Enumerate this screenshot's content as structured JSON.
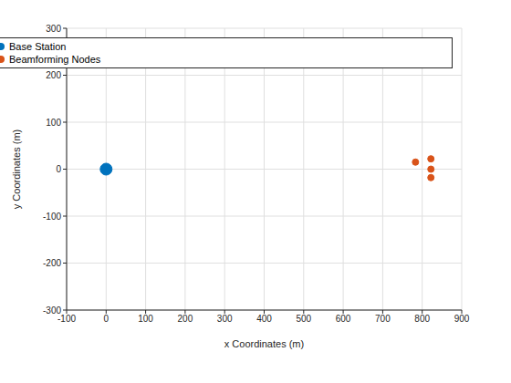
{
  "chart_data": {
    "type": "scatter",
    "xlabel": "x Coordinates (m)",
    "ylabel": "y Coordinates (m)",
    "xlim": [
      -100,
      900
    ],
    "xticks": [
      -100,
      0,
      100,
      200,
      300,
      400,
      500,
      600,
      700,
      800,
      900
    ],
    "ylim": [
      -300,
      300
    ],
    "yticks": [
      -300,
      -200,
      -100,
      0,
      100,
      200,
      300
    ],
    "grid": true,
    "legend": "northeast",
    "series": [
      {
        "name": "Base Station",
        "color": "#0072bd",
        "marker": "circle",
        "x": [
          0
        ],
        "values": [
          0
        ]
      },
      {
        "name": "Beamforming Nodes",
        "color": "#d95319",
        "marker": "circle",
        "x": [
          783,
          822,
          822,
          822
        ],
        "values": [
          15,
          22,
          0,
          -18
        ]
      }
    ]
  }
}
